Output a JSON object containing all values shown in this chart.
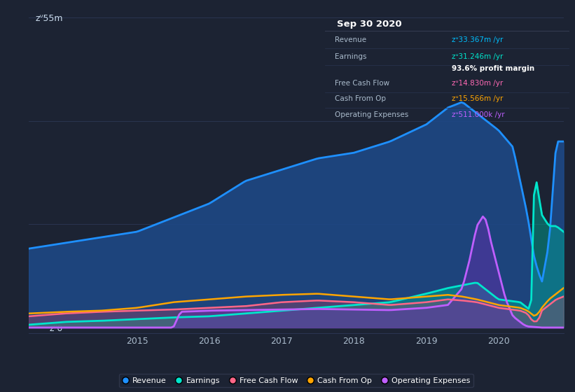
{
  "bg_color": "#1c2333",
  "plot_bg_color": "#1c2333",
  "grid_color": "#2a3550",
  "title_box": {
    "date": "Sep 30 2020",
    "rows": [
      {
        "label": "Revenue",
        "value": "zᐡ33.367m /yr",
        "value_color": "#00bfff"
      },
      {
        "label": "Earnings",
        "value": "zᐡ31.246m /yr",
        "value_color": "#00e5cc"
      },
      {
        "label": "",
        "value": "93.6% profit margin",
        "value_color": "#ffffff"
      },
      {
        "label": "Free Cash Flow",
        "value": "zᐡ14.830m /yr",
        "value_color": "#ff69b4"
      },
      {
        "label": "Cash From Op",
        "value": "zᐡ15.566m /yr",
        "value_color": "#ffa500"
      },
      {
        "label": "Operating Expenses",
        "value": "zᐡ511.000k /yr",
        "value_color": "#bf5fff"
      }
    ]
  },
  "ylabel_top": "zᐡ55m",
  "ylabel_bottom": "zᐡ0",
  "xlabel_ticks": [
    "2015",
    "2016",
    "2017",
    "2018",
    "2019",
    "2020"
  ],
  "series": {
    "revenue": {
      "color": "#1e90ff",
      "fill_color": "#1e4a8a",
      "fill_alpha": 0.85,
      "line_width": 2.0
    },
    "earnings": {
      "color": "#00e5cc",
      "fill_color": "#00a090",
      "fill_alpha": 0.5,
      "line_width": 2.0
    },
    "free_cash_flow": {
      "color": "#ff6688",
      "fill_color": "#c04060",
      "fill_alpha": 0.3,
      "line_width": 1.8
    },
    "cash_from_op": {
      "color": "#ffa500",
      "fill_color": "#a06000",
      "fill_alpha": 0.0,
      "line_width": 1.8
    },
    "operating_expenses": {
      "color": "#bf5fff",
      "fill_color": "#6030aa",
      "fill_alpha": 0.5,
      "line_width": 2.0
    }
  },
  "legend": [
    {
      "label": "Revenue",
      "color": "#1e90ff"
    },
    {
      "label": "Earnings",
      "color": "#00e5cc"
    },
    {
      "label": "Free Cash Flow",
      "color": "#ff6688"
    },
    {
      "label": "Cash From Op",
      "color": "#ffa500"
    },
    {
      "label": "Operating Expenses",
      "color": "#bf5fff"
    }
  ]
}
